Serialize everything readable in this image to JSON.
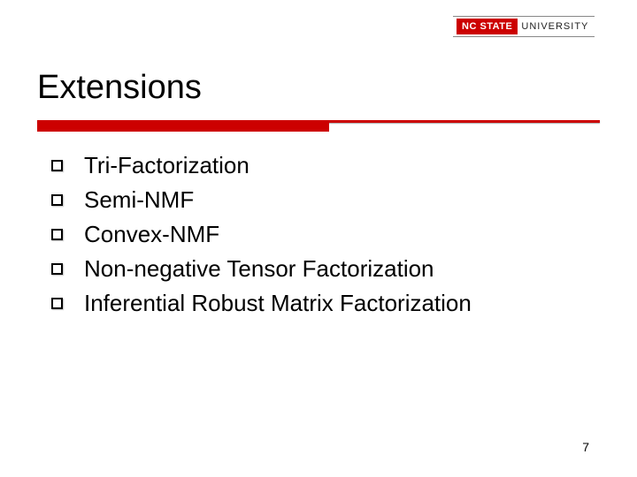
{
  "logo": {
    "red_label": "NC STATE",
    "rest_label": "UNIVERSITY"
  },
  "title": "Extensions",
  "accent_color": "#cc0000",
  "items": [
    "Tri-Factorization",
    "Semi-NMF",
    "Convex-NMF",
    "Non-negative Tensor Factorization",
    "Inferential Robust Matrix Factorization"
  ],
  "page_number": "7",
  "title_fontsize": 38,
  "item_fontsize": 26,
  "background_color": "#ffffff"
}
